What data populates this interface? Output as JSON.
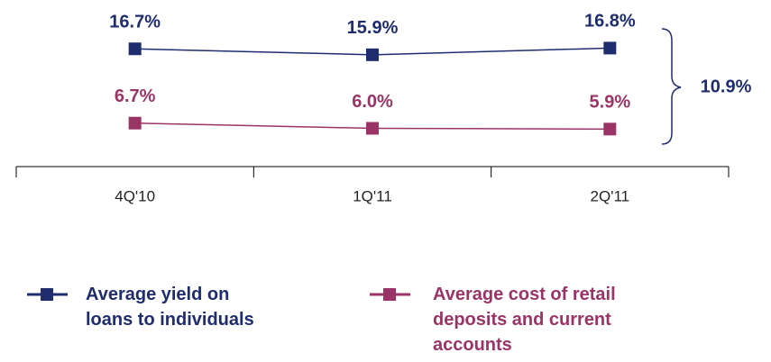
{
  "chart_data": {
    "type": "line",
    "categories": [
      "4Q'10",
      "1Q'11",
      "2Q'11"
    ],
    "series": [
      {
        "name": "Average yield on loans to individuals",
        "color": "#1f2d6e",
        "values": [
          16.7,
          15.9,
          16.8
        ],
        "value_labels": [
          "16.7%",
          "15.9%",
          "16.8%"
        ]
      },
      {
        "name": "Average cost of retail deposits and current accounts",
        "color": "#9b3466",
        "values": [
          6.7,
          6.0,
          5.9
        ],
        "value_labels": [
          "6.7%",
          "6.0%",
          "5.9%"
        ]
      }
    ],
    "annotation": "10.9%",
    "ylim": [
      0,
      20
    ],
    "grid": false
  }
}
